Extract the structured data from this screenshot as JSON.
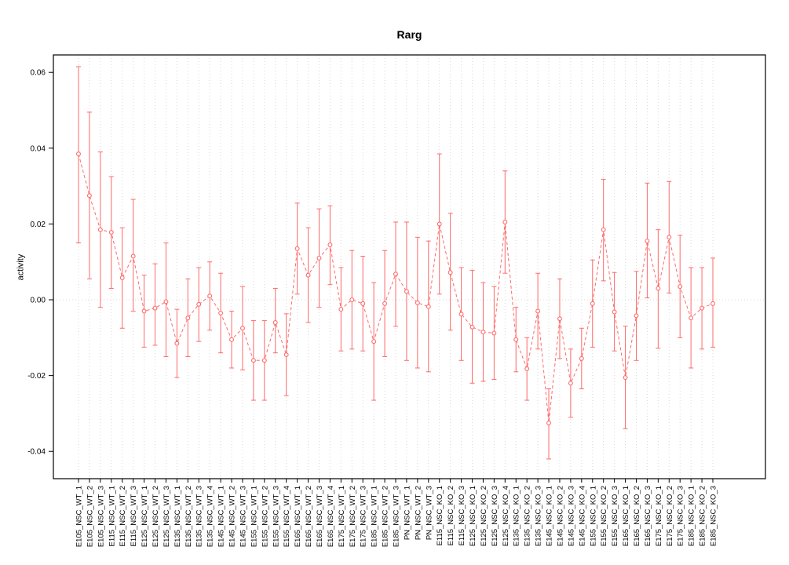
{
  "chart_data": {
    "type": "line",
    "title": "Rarg",
    "xlabel": "",
    "ylabel": "activity",
    "ylim": [
      -0.0472,
      0.0646
    ],
    "yticks": [
      -0.04,
      -0.02,
      0,
      0.02,
      0.04,
      0.06
    ],
    "grid": {
      "vertical_dotted_per_category": true,
      "zero_line_dotted": true
    },
    "legend_position": "none",
    "point_style": "open-circle",
    "line_style": "dashed",
    "error_bars": true,
    "colors": {
      "series": "#ff6a6a",
      "grid": "#d9d9d9",
      "axis": "#000000",
      "background": "#ffffff"
    },
    "categories": [
      "E105_NSC_WT_1",
      "E105_NSC_WT_2",
      "E105_NSC_WT_3",
      "E115_NSC_WT_1",
      "E115_NSC_WT_2",
      "E115_NSC_WT_3",
      "E125_NSC_WT_1",
      "E125_NSC_WT_2",
      "E125_NSC_WT_3",
      "E135_NSC_WT_1",
      "E135_NSC_WT_2",
      "E135_NSC_WT_3",
      "E135_NSC_WT_4",
      "E145_NSC_WT_1",
      "E145_NSC_WT_2",
      "E145_NSC_WT_3",
      "E155_NSC_WT_1",
      "E155_NSC_WT_2",
      "E155_NSC_WT_3",
      "E155_NSC_WT_4",
      "E165_NSC_WT_1",
      "E165_NSC_WT_2",
      "E165_NSC_WT_3",
      "E165_NSC_WT_4",
      "E175_NSC_WT_1",
      "E175_NSC_WT_2",
      "E175_NSC_WT_3",
      "E185_NSC_WT_1",
      "E185_NSC_WT_2",
      "E185_NSC_WT_3",
      "PN_NSC_WT_1",
      "PN_NSC_WT_2",
      "PN_NSC_WT_3",
      "E115_NSC_KO_1",
      "E115_NSC_KO_2",
      "E115_NSC_KO_3",
      "E125_NSC_KO_1",
      "E125_NSC_KO_2",
      "E125_NSC_KO_3",
      "E125_NSC_KO_4",
      "E135_NSC_KO_1",
      "E135_NSC_KO_2",
      "E135_NSC_KO_3",
      "E145_NSC_KO_1",
      "E145_NSC_KO_2",
      "E145_NSC_KO_3",
      "E145_NSC_KO_4",
      "E155_NSC_KO_1",
      "E155_NSC_KO_2",
      "E155_NSC_KO_3",
      "E165_NSC_KO_1",
      "E165_NSC_KO_2",
      "E165_NSC_KO_3",
      "E175_NSC_KO_1",
      "E175_NSC_KO_2",
      "E175_NSC_KO_3",
      "E185_NSC_KO_1",
      "E185_NSC_KO_2",
      "E185_NSC_KO_3"
    ],
    "values": [
      0.0385,
      0.0275,
      0.0185,
      0.0178,
      0.0058,
      0.0115,
      -0.003,
      -0.0022,
      -0.0005,
      -0.0115,
      -0.0048,
      -0.0012,
      0.001,
      -0.0035,
      -0.0105,
      -0.0075,
      -0.016,
      -0.016,
      -0.006,
      -0.0145,
      0.0135,
      0.0065,
      0.011,
      0.0145,
      -0.0025,
      0.0,
      -0.001,
      -0.011,
      -0.001,
      0.0068,
      0.0022,
      -0.0008,
      -0.0018,
      0.02,
      0.0072,
      -0.0038,
      -0.0072,
      -0.0085,
      -0.0088,
      0.0205,
      -0.0105,
      -0.0182,
      -0.003,
      -0.0325,
      -0.005,
      -0.022,
      -0.0155,
      -0.001,
      0.0185,
      -0.0032,
      -0.0205,
      -0.0042,
      0.0155,
      0.003,
      0.0165,
      0.0035,
      -0.0048,
      -0.0022,
      -0.001
    ],
    "ci_low": [
      0.015,
      0.0055,
      -0.002,
      0.003,
      -0.0075,
      -0.003,
      -0.0125,
      -0.012,
      -0.015,
      -0.0205,
      -0.015,
      -0.011,
      -0.008,
      -0.014,
      -0.018,
      -0.0185,
      -0.0265,
      -0.0265,
      -0.014,
      -0.0253,
      0.0015,
      -0.006,
      -0.002,
      0.004,
      -0.0135,
      -0.013,
      -0.0135,
      -0.0265,
      -0.015,
      -0.007,
      -0.016,
      -0.018,
      -0.019,
      0.0015,
      -0.008,
      -0.016,
      -0.022,
      -0.0215,
      -0.021,
      0.007,
      -0.019,
      -0.0265,
      -0.013,
      -0.042,
      -0.0155,
      -0.031,
      -0.0235,
      -0.0125,
      0.005,
      -0.0135,
      -0.034,
      -0.016,
      0.0005,
      -0.0128,
      0.0018,
      -0.01,
      -0.018,
      -0.013,
      -0.0125
    ],
    "ci_high": [
      0.0615,
      0.0495,
      0.039,
      0.0325,
      0.019,
      0.0265,
      0.0065,
      0.0095,
      0.015,
      -0.0025,
      0.0055,
      0.0085,
      0.01,
      0.007,
      -0.003,
      0.0035,
      -0.0055,
      -0.0055,
      0.003,
      -0.0037,
      0.0255,
      0.019,
      0.024,
      0.0248,
      0.0085,
      0.013,
      0.0115,
      0.0045,
      0.013,
      0.0205,
      0.0205,
      0.0165,
      0.0155,
      0.0385,
      0.0228,
      0.0085,
      0.0078,
      0.0045,
      0.0035,
      0.034,
      -0.002,
      -0.01,
      0.007,
      -0.0235,
      0.0055,
      -0.013,
      -0.0075,
      0.0105,
      0.0318,
      0.0072,
      -0.007,
      0.0075,
      0.0308,
      0.0185,
      0.0312,
      0.017,
      0.0085,
      0.0085,
      0.011
    ]
  }
}
